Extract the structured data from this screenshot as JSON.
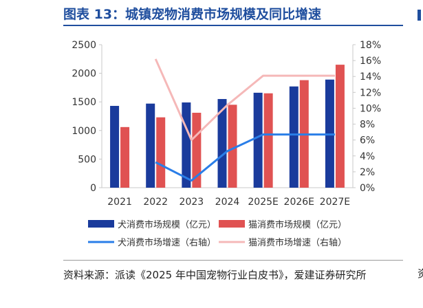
{
  "header": {
    "title": "图表 13：城镇宠物消费市场规模及同比增速"
  },
  "footer": {
    "source": "资料来源：派读《2025 年中国宠物行业白皮书》，爱建证券研究所",
    "edge_char": "资"
  },
  "colors": {
    "title": "#1f4e9e",
    "dog_bar": "#1a3b9c",
    "cat_bar": "#e05252",
    "dog_line": "#2a7ee8",
    "cat_line": "#f5b8b8",
    "axis": "#c8c8c8"
  },
  "chart_data": {
    "type": "bar",
    "categories": [
      "2021",
      "2022",
      "2023",
      "2024",
      "2025E",
      "2026E",
      "2027E"
    ],
    "ylim": [
      0,
      2500
    ],
    "y_ticks": [
      "0",
      "500",
      "1000",
      "1500",
      "2000",
      "2500"
    ],
    "y2lim": [
      0,
      18
    ],
    "y2_ticks": [
      "0%",
      "2%",
      "4%",
      "6%",
      "8%",
      "10%",
      "12%",
      "14%",
      "16%",
      "18%"
    ],
    "grid": false,
    "legend_position": "bottom",
    "series": [
      {
        "name": "犬消费市场规模（亿元）",
        "kind": "bar",
        "axis": "left",
        "values": [
          1430,
          1470,
          1490,
          1550,
          1660,
          1770,
          1890
        ]
      },
      {
        "name": "猫消费市场规模（亿元）",
        "kind": "bar",
        "axis": "left",
        "values": [
          1060,
          1230,
          1310,
          1450,
          1650,
          1880,
          2150
        ]
      },
      {
        "name": "犬消费市场增速（右轴）",
        "kind": "line",
        "axis": "right",
        "values": [
          null,
          3.2,
          0.9,
          4.6,
          6.7,
          6.7,
          6.7
        ]
      },
      {
        "name": "猫消费市场增速（右轴）",
        "kind": "line",
        "axis": "right",
        "values": [
          null,
          16.2,
          6.0,
          10.4,
          14.1,
          14.1,
          14.1
        ]
      }
    ]
  }
}
